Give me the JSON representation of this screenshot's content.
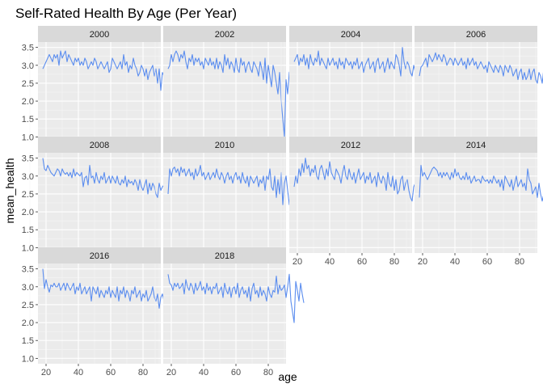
{
  "chart_data": {
    "type": "line",
    "title": "Self-Rated Health By Age (Per Year)",
    "xlabel": "age",
    "ylabel": "mean_health",
    "xlim": [
      15,
      91
    ],
    "ylim": [
      0.85,
      3.65
    ],
    "x_ticks": [
      20,
      40,
      60,
      80
    ],
    "y_ticks": [
      1.0,
      1.5,
      2.0,
      2.5,
      3.0,
      3.5
    ],
    "x_tick_labels": [
      "20",
      "40",
      "60",
      "80"
    ],
    "y_tick_labels": [
      "1.0",
      "1.5",
      "2.0",
      "2.5",
      "3.0",
      "3.5"
    ],
    "grid": true,
    "facet_layout": "wrap 4 columns",
    "panels": [
      {
        "label": "2000",
        "x_start": 18,
        "values": [
          2.9,
          3.0,
          3.1,
          3.2,
          3.3,
          3.2,
          3.1,
          3.3,
          3.2,
          3.3,
          3.0,
          3.4,
          3.2,
          3.3,
          3.4,
          3.1,
          3.3,
          3.2,
          3.1,
          3.0,
          3.2,
          3.1,
          3.2,
          3.0,
          3.1,
          3.0,
          3.2,
          3.1,
          2.9,
          3.0,
          3.1,
          3.0,
          3.2,
          3.1,
          2.9,
          3.0,
          3.1,
          3.0,
          2.9,
          3.0,
          3.1,
          2.8,
          2.9,
          3.2,
          3.1,
          3.0,
          2.9,
          3.0,
          3.1,
          2.9,
          3.3,
          3.0,
          3.1,
          2.8,
          3.0,
          2.9,
          3.2,
          3.0,
          2.9,
          2.7,
          2.8,
          3.0,
          2.9,
          2.7,
          2.9,
          2.6,
          2.8,
          2.9,
          3.0,
          2.7,
          2.9,
          2.5,
          2.9,
          2.3,
          2.8,
          2.7,
          2.4,
          2.0,
          1.9,
          2.9,
          2.3,
          2.1,
          1.9,
          1.65,
          2.0
        ]
      },
      {
        "label": "2002",
        "x_start": 18,
        "values": [
          2.9,
          3.0,
          3.3,
          3.1,
          3.3,
          3.4,
          3.3,
          3.1,
          3.3,
          3.2,
          3.4,
          3.1,
          2.9,
          3.2,
          3.1,
          3.3,
          3.0,
          3.2,
          3.1,
          3.2,
          3.0,
          3.1,
          2.9,
          3.2,
          3.1,
          3.0,
          3.2,
          3.0,
          3.1,
          2.9,
          3.2,
          2.9,
          3.1,
          3.0,
          2.8,
          3.3,
          3.0,
          3.2,
          2.9,
          3.1,
          3.0,
          2.8,
          3.2,
          2.9,
          2.8,
          3.2,
          3.0,
          3.1,
          2.8,
          3.0,
          3.1,
          2.9,
          2.8,
          3.1,
          3.0,
          2.9,
          2.7,
          3.1,
          2.9,
          2.6,
          3.2,
          2.5,
          3.0,
          2.7,
          2.4,
          3.0,
          2.8,
          2.5,
          2.2,
          2.8,
          2.0,
          1.5,
          1.0,
          2.6,
          2.2,
          2.8,
          2.9,
          2.6,
          3.0,
          2.2,
          2.1,
          2.6,
          2.9,
          2.0,
          1.8
        ]
      },
      {
        "label": "2004",
        "x_start": 18,
        "values": [
          3.1,
          3.2,
          3.3,
          3.0,
          3.2,
          3.1,
          3.3,
          3.0,
          3.2,
          2.9,
          3.3,
          3.1,
          3.0,
          3.2,
          3.1,
          3.4,
          3.0,
          3.2,
          3.1,
          3.0,
          2.9,
          3.2,
          3.0,
          3.1,
          3.2,
          3.0,
          3.1,
          2.9,
          3.2,
          3.0,
          3.1,
          2.9,
          3.2,
          3.1,
          3.0,
          3.1,
          2.9,
          3.1,
          3.0,
          3.2,
          2.9,
          3.0,
          3.1,
          2.8,
          3.0,
          3.1,
          3.2,
          2.9,
          3.0,
          3.1,
          2.8,
          3.1,
          3.2,
          2.9,
          3.0,
          3.1,
          2.8,
          3.0,
          3.2,
          2.9,
          3.1,
          3.0,
          2.9,
          3.3,
          3.2,
          3.0,
          2.7,
          3.5,
          3.1,
          2.9,
          3.1,
          3.0,
          2.8,
          2.7,
          3.0,
          2.8,
          2.6,
          2.4,
          2.0,
          2.5,
          2.0,
          3.0,
          2.6,
          3.0,
          3.0
        ]
      },
      {
        "label": "2006",
        "x_start": 18,
        "values": [
          2.7,
          2.95,
          3.0,
          3.1,
          3.2,
          2.95,
          3.3,
          3.2,
          3.1,
          3.2,
          3.35,
          3.15,
          3.3,
          3.2,
          3.1,
          3.3,
          3.2,
          3.0,
          3.1,
          3.2,
          3.15,
          3.0,
          3.2,
          3.1,
          3.0,
          3.1,
          3.2,
          3.0,
          3.1,
          2.9,
          3.2,
          3.0,
          3.1,
          3.2,
          3.0,
          3.1,
          2.9,
          3.0,
          3.1,
          3.0,
          2.9,
          3.0,
          2.8,
          3.1,
          3.0,
          2.9,
          2.8,
          3.0,
          2.9,
          2.8,
          3.0,
          2.9,
          2.7,
          3.0,
          2.9,
          2.8,
          3.0,
          2.9,
          2.7,
          2.8,
          2.9,
          2.6,
          2.8,
          2.9,
          2.6,
          2.8,
          2.6,
          2.7,
          2.9,
          2.6,
          2.8,
          2.9,
          2.6,
          2.5,
          2.8,
          2.7,
          2.5,
          2.9,
          2.8,
          2.6,
          2.4,
          2.5,
          2.4,
          2.6,
          2.5
        ]
      },
      {
        "label": "2008",
        "x_start": 18,
        "values": [
          3.5,
          3.2,
          3.15,
          3.3,
          3.2,
          3.1,
          3.05,
          3.0,
          3.1,
          3.2,
          3.15,
          3.0,
          3.2,
          3.1,
          3.05,
          3.1,
          3.0,
          3.1,
          2.95,
          3.2,
          3.0,
          3.1,
          3.05,
          3.0,
          3.1,
          2.7,
          2.95,
          3.0,
          2.75,
          3.3,
          2.95,
          3.0,
          2.8,
          3.1,
          2.9,
          2.8,
          3.0,
          2.9,
          3.1,
          2.8,
          2.9,
          3.0,
          2.8,
          3.0,
          2.9,
          2.8,
          3.0,
          2.8,
          2.75,
          2.9,
          2.8,
          3.0,
          2.7,
          2.9,
          2.8,
          2.85,
          2.75,
          2.9,
          2.8,
          2.6,
          2.9,
          2.7,
          2.6,
          2.75,
          2.9,
          2.5,
          2.8,
          2.6,
          2.8,
          2.7,
          2.5,
          2.4,
          2.8,
          2.6,
          2.7,
          2.75,
          2.7,
          2.7,
          2.6,
          2.5,
          2.1,
          2.7,
          2.7,
          2.7,
          2.7
        ]
      },
      {
        "label": "2010",
        "x_start": 18,
        "values": [
          2.5,
          3.2,
          3.0,
          3.2,
          3.25,
          3.1,
          3.2,
          3.0,
          3.25,
          3.1,
          3.2,
          3.0,
          3.1,
          3.2,
          3.0,
          3.1,
          2.9,
          3.2,
          3.0,
          3.1,
          3.3,
          3.0,
          3.1,
          2.9,
          3.0,
          3.1,
          2.9,
          3.0,
          3.1,
          2.95,
          3.2,
          3.0,
          2.9,
          3.1,
          3.0,
          2.8,
          3.0,
          3.1,
          2.9,
          3.0,
          2.8,
          3.0,
          3.1,
          2.9,
          3.0,
          2.8,
          3.1,
          2.9,
          2.8,
          3.0,
          2.7,
          3.0,
          2.9,
          2.8,
          2.9,
          3.0,
          2.7,
          2.9,
          2.8,
          3.0,
          2.6,
          3.0,
          2.9,
          3.2,
          2.7,
          2.6,
          3.0,
          2.4,
          2.9,
          2.5,
          3.1,
          2.2,
          2.8,
          3.0,
          2.6,
          2.2,
          2.8,
          3.2,
          3.4,
          2.7,
          1.65,
          3.0,
          2.6,
          2.9,
          2.4
        ]
      },
      {
        "label": "2012",
        "x_start": 18,
        "values": [
          2.7,
          3.0,
          2.8,
          3.2,
          3.0,
          3.35,
          3.1,
          3.5,
          3.2,
          3.3,
          3.0,
          3.2,
          3.1,
          3.3,
          3.0,
          2.9,
          3.2,
          3.3,
          3.1,
          2.9,
          3.2,
          3.0,
          3.4,
          3.1,
          3.0,
          2.9,
          3.2,
          3.1,
          3.0,
          2.8,
          3.1,
          3.3,
          3.0,
          2.9,
          3.2,
          3.0,
          2.9,
          3.1,
          2.8,
          3.0,
          3.2,
          2.9,
          3.0,
          3.1,
          2.8,
          3.0,
          2.9,
          3.1,
          2.8,
          2.9,
          3.0,
          2.7,
          3.1,
          2.9,
          2.8,
          3.0,
          2.9,
          2.6,
          3.1,
          2.8,
          2.7,
          3.0,
          2.6,
          2.9,
          2.5,
          2.6,
          2.9,
          3.0,
          2.6,
          2.8,
          2.9,
          2.6,
          2.4,
          2.3,
          2.7,
          2.8,
          3.1,
          2.5,
          2.3,
          2.3,
          2.35,
          3.3,
          2.5,
          2.4,
          2.8
        ]
      },
      {
        "label": "2014",
        "x_start": 18,
        "values": [
          2.4,
          3.3,
          3.0,
          3.1,
          3.0,
          2.9,
          3.0,
          3.1,
          3.2,
          3.25,
          3.2,
          3.15,
          3.0,
          3.1,
          2.95,
          3.1,
          3.0,
          3.1,
          3.0,
          2.9,
          3.1,
          2.95,
          3.2,
          3.0,
          3.1,
          2.95,
          2.9,
          3.0,
          2.9,
          3.1,
          2.9,
          3.0,
          2.8,
          2.9,
          3.0,
          2.85,
          2.9,
          2.9,
          2.8,
          3.0,
          2.9,
          2.85,
          2.9,
          2.8,
          2.9,
          2.8,
          3.0,
          2.9,
          2.8,
          2.9,
          2.7,
          2.9,
          2.6,
          3.0,
          2.9,
          2.8,
          2.7,
          2.9,
          2.6,
          2.8,
          3.0,
          2.7,
          2.8,
          2.9,
          2.7,
          2.8,
          2.6,
          3.2,
          2.9,
          2.8,
          2.5,
          2.6,
          2.7,
          2.4,
          2.8,
          2.5,
          2.3,
          2.5,
          2.2,
          2.0,
          2.3,
          2.4,
          2.5,
          2.7,
          2.6
        ]
      },
      {
        "label": "2016",
        "x_start": 18,
        "values": [
          3.5,
          2.95,
          3.2,
          3.0,
          2.85,
          3.05,
          3.0,
          3.1,
          3.0,
          3.0,
          3.1,
          2.9,
          3.0,
          3.1,
          2.9,
          3.1,
          3.0,
          2.9,
          3.0,
          3.1,
          2.8,
          3.0,
          2.9,
          3.1,
          2.8,
          2.9,
          3.0,
          2.8,
          2.9,
          3.0,
          2.6,
          3.0,
          2.9,
          2.8,
          3.0,
          2.7,
          2.9,
          2.8,
          2.7,
          2.9,
          2.8,
          3.0,
          2.7,
          2.9,
          2.8,
          2.7,
          3.0,
          2.6,
          2.9,
          2.8,
          3.0,
          2.7,
          2.9,
          2.8,
          2.6,
          2.9,
          2.8,
          3.0,
          2.7,
          2.8,
          2.9,
          2.6,
          2.8,
          2.7,
          2.9,
          2.6,
          2.7,
          2.8,
          3.0,
          2.7,
          2.6,
          2.8,
          2.4,
          2.7,
          2.8,
          2.6,
          2.5,
          2.4,
          2.7,
          2.5,
          2.8,
          2.7,
          2.0,
          2.6,
          2.7
        ]
      },
      {
        "label": "2018",
        "x_start": 18,
        "values": [
          3.35,
          3.1,
          3.05,
          2.9,
          3.1,
          3.0,
          3.1,
          2.95,
          3.0,
          3.1,
          2.8,
          3.2,
          3.0,
          2.9,
          3.1,
          3.0,
          2.8,
          3.1,
          2.9,
          3.0,
          3.15,
          2.9,
          3.0,
          2.8,
          3.1,
          2.9,
          3.0,
          2.8,
          3.0,
          2.95,
          3.1,
          2.8,
          2.9,
          3.0,
          2.7,
          3.1,
          2.9,
          2.8,
          3.0,
          2.7,
          2.95,
          3.0,
          2.8,
          3.1,
          2.7,
          2.9,
          3.0,
          2.8,
          2.9,
          2.7,
          3.0,
          2.6,
          2.95,
          3.1,
          2.8,
          2.9,
          2.7,
          3.0,
          2.75,
          2.9,
          2.8,
          2.6,
          3.0,
          2.8,
          2.7,
          2.9,
          2.85,
          3.3,
          2.8,
          3.05,
          2.9,
          2.95,
          3.05,
          2.7,
          3.0,
          3.35,
          2.6,
          2.3,
          2.0,
          3.15,
          2.9,
          2.6,
          3.1,
          2.8,
          2.55
        ]
      }
    ]
  },
  "style": {
    "page_background": "#ffffff",
    "panel_background": "#ebebeb",
    "strip_background": "#d9d9d9",
    "grid_major_color": "#ffffff",
    "grid_minor_color": "#f5f5f5",
    "line_color": "#5b8def",
    "tick_color": "#333333"
  }
}
